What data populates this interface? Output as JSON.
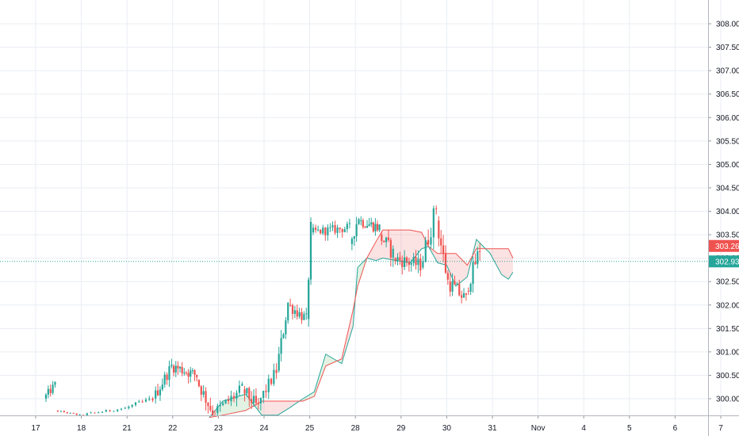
{
  "chart_data": {
    "type": "candlestick",
    "y_axis": {
      "ticks": [
        "308.00",
        "307.50",
        "307.00",
        "306.50",
        "306.00",
        "305.50",
        "305.00",
        "304.50",
        "304.00",
        "303.50",
        "303.00",
        "302.50",
        "302.00",
        "301.50",
        "301.00",
        "300.50",
        "300.00"
      ],
      "range": [
        299.6,
        308.35
      ]
    },
    "x_axis": {
      "ticks": [
        "17",
        "18",
        "21",
        "22",
        "23",
        "24",
        "25",
        "28",
        "29",
        "30",
        "31",
        "Nov",
        "4",
        "5",
        "6",
        "7"
      ]
    },
    "price_badges": [
      {
        "label": "303.26",
        "value": 303.26,
        "color": "#ef5350"
      },
      {
        "label": "302.93",
        "value": 302.93,
        "color": "#26a69a"
      }
    ],
    "last_price_line": 302.93,
    "candle_segments": [
      {
        "x0": 0.2,
        "x1": 0.45,
        "start": 300.0,
        "end": 300.3,
        "vol": 0.18,
        "n": 5
      },
      {
        "x0": 0.45,
        "x1": 1.0,
        "start": 299.75,
        "end": 299.65,
        "vol": 0.03,
        "n": 8
      },
      {
        "x0": 1.0,
        "x1": 2.0,
        "start": 299.65,
        "end": 299.8,
        "vol": 0.05,
        "n": 12
      },
      {
        "x0": 2.0,
        "x1": 2.6,
        "start": 299.8,
        "end": 300.0,
        "vol": 0.1,
        "n": 8
      },
      {
        "x0": 2.6,
        "x1": 3.0,
        "start": 300.0,
        "end": 300.7,
        "vol": 0.25,
        "n": 8
      },
      {
        "x0": 3.0,
        "x1": 3.55,
        "start": 300.7,
        "end": 300.5,
        "vol": 0.25,
        "n": 12
      },
      {
        "x0": 3.55,
        "x1": 3.95,
        "start": 300.4,
        "end": 299.6,
        "vol": 0.3,
        "n": 8
      },
      {
        "x0": 3.95,
        "x1": 4.55,
        "start": 299.7,
        "end": 300.2,
        "vol": 0.3,
        "n": 10
      },
      {
        "x0": 4.55,
        "x1": 4.9,
        "start": 300.2,
        "end": 299.8,
        "vol": 0.3,
        "n": 7
      },
      {
        "x0": 4.9,
        "x1": 5.3,
        "start": 299.9,
        "end": 300.6,
        "vol": 0.28,
        "n": 7
      },
      {
        "x0": 5.3,
        "x1": 5.55,
        "start": 300.6,
        "end": 302.05,
        "vol": 0.35,
        "n": 5
      },
      {
        "x0": 5.55,
        "x1": 5.95,
        "start": 302.0,
        "end": 301.7,
        "vol": 0.25,
        "n": 8
      },
      {
        "x0": 5.95,
        "x1": 6.05,
        "start": 301.7,
        "end": 303.6,
        "vol": 0.4,
        "n": 2
      },
      {
        "x0": 6.05,
        "x1": 6.9,
        "start": 303.55,
        "end": 303.65,
        "vol": 0.2,
        "n": 16
      },
      {
        "x0": 6.9,
        "x1": 7.1,
        "start": 303.3,
        "end": 303.9,
        "vol": 0.3,
        "n": 4
      },
      {
        "x0": 7.1,
        "x1": 7.55,
        "start": 303.8,
        "end": 303.65,
        "vol": 0.25,
        "n": 10
      },
      {
        "x0": 7.55,
        "x1": 7.85,
        "start": 303.5,
        "end": 303.1,
        "vol": 0.35,
        "n": 6
      },
      {
        "x0": 7.85,
        "x1": 8.45,
        "start": 303.0,
        "end": 302.85,
        "vol": 0.3,
        "n": 12
      },
      {
        "x0": 8.45,
        "x1": 8.8,
        "start": 302.8,
        "end": 304.1,
        "vol": 0.45,
        "n": 6
      },
      {
        "x0": 8.8,
        "x1": 9.05,
        "start": 303.8,
        "end": 302.5,
        "vol": 0.4,
        "n": 5
      },
      {
        "x0": 9.05,
        "x1": 9.45,
        "start": 302.5,
        "end": 302.1,
        "vol": 0.35,
        "n": 8
      },
      {
        "x0": 9.45,
        "x1": 9.75,
        "start": 302.3,
        "end": 303.2,
        "vol": 0.35,
        "n": 6
      }
    ],
    "ichimoku_spans": [
      {
        "name": "span_a",
        "color": "#26a69a",
        "points": [
          [
            3.8,
            299.6
          ],
          [
            4.1,
            299.95
          ],
          [
            4.6,
            300.1
          ],
          [
            4.95,
            299.65
          ],
          [
            5.3,
            299.65
          ],
          [
            5.55,
            299.8
          ],
          [
            5.85,
            300.0
          ],
          [
            6.1,
            300.15
          ],
          [
            6.35,
            300.95
          ],
          [
            6.7,
            300.75
          ],
          [
            6.95,
            301.55
          ],
          [
            7.05,
            302.8
          ],
          [
            7.25,
            303.0
          ],
          [
            7.45,
            302.95
          ],
          [
            7.6,
            303.0
          ],
          [
            7.9,
            302.95
          ],
          [
            8.2,
            302.9
          ],
          [
            8.45,
            303.2
          ],
          [
            8.6,
            303.25
          ],
          [
            8.8,
            302.9
          ],
          [
            9.0,
            302.85
          ],
          [
            9.2,
            302.4
          ],
          [
            9.45,
            302.6
          ],
          [
            9.65,
            303.4
          ],
          [
            9.95,
            303.1
          ],
          [
            10.2,
            302.65
          ],
          [
            10.35,
            302.55
          ],
          [
            10.45,
            302.7
          ]
        ]
      },
      {
        "name": "span_b",
        "color": "#ef5350",
        "points": [
          [
            3.8,
            299.6
          ],
          [
            4.1,
            299.65
          ],
          [
            4.6,
            299.75
          ],
          [
            4.95,
            299.95
          ],
          [
            5.3,
            299.95
          ],
          [
            5.55,
            299.95
          ],
          [
            5.85,
            299.95
          ],
          [
            6.1,
            300.05
          ],
          [
            6.35,
            300.7
          ],
          [
            6.7,
            300.85
          ],
          [
            6.95,
            301.9
          ],
          [
            7.05,
            302.4
          ],
          [
            7.25,
            303.0
          ],
          [
            7.45,
            303.35
          ],
          [
            7.6,
            303.6
          ],
          [
            7.9,
            303.6
          ],
          [
            8.2,
            303.6
          ],
          [
            8.45,
            303.55
          ],
          [
            8.6,
            303.25
          ],
          [
            8.8,
            303.1
          ],
          [
            9.0,
            303.1
          ],
          [
            9.2,
            303.1
          ],
          [
            9.45,
            302.85
          ],
          [
            9.65,
            303.2
          ],
          [
            9.95,
            303.2
          ],
          [
            10.2,
            303.2
          ],
          [
            10.35,
            303.2
          ],
          [
            10.45,
            303.0
          ]
        ]
      }
    ]
  }
}
